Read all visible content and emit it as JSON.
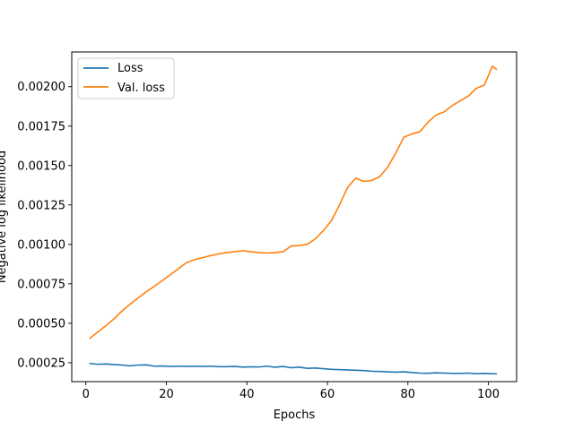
{
  "chart_data": {
    "type": "line",
    "title": "",
    "xlabel": "Epochs",
    "ylabel": "Negative log likelihood",
    "xlim": [
      -3.5,
      107.0
    ],
    "ylim": [
      0.00013,
      0.00222
    ],
    "xticks": [
      0,
      20,
      40,
      60,
      80,
      100
    ],
    "xtick_labels": [
      "0",
      "20",
      "40",
      "60",
      "80",
      "100"
    ],
    "yticks": [
      0.00025,
      0.0005,
      0.00075,
      0.001,
      0.00125,
      0.0015,
      0.00175,
      0.002
    ],
    "ytick_labels": [
      "0.00025",
      "0.00050",
      "0.00075",
      "0.00100",
      "0.00125",
      "0.00150",
      "0.00175",
      "0.00200"
    ],
    "grid": false,
    "legend_position": "top-left",
    "series": [
      {
        "name": "Loss",
        "color": "#1f77b4",
        "x": [
          1,
          3,
          5,
          7,
          9,
          11,
          13,
          15,
          17,
          19,
          21,
          23,
          25,
          27,
          29,
          31,
          33,
          35,
          37,
          39,
          41,
          43,
          45,
          47,
          49,
          51,
          53,
          55,
          57,
          59,
          61,
          63,
          65,
          67,
          69,
          71,
          73,
          75,
          77,
          79,
          81,
          83,
          85,
          87,
          89,
          91,
          93,
          95,
          97,
          99,
          101,
          102
        ],
        "y": [
          0.000245,
          0.00024,
          0.000242,
          0.000238,
          0.000235,
          0.00023,
          0.000235,
          0.000236,
          0.000228,
          0.000229,
          0.000226,
          0.000228,
          0.000227,
          0.000228,
          0.000226,
          0.000228,
          0.000225,
          0.000225,
          0.000226,
          0.000222,
          0.000224,
          0.000223,
          0.000228,
          0.000221,
          0.000226,
          0.000218,
          0.000222,
          0.000214,
          0.000216,
          0.000212,
          0.000208,
          0.000206,
          0.000204,
          0.000202,
          0.0002,
          0.000196,
          0.000194,
          0.000192,
          0.00019,
          0.000192,
          0.000188,
          0.000184,
          0.000183,
          0.000186,
          0.000184,
          0.000182,
          0.000182,
          0.000184,
          0.00018,
          0.000182,
          0.00018,
          0.000179
        ]
      },
      {
        "name": "Val. loss",
        "color": "#ff7f0e",
        "x": [
          1,
          3,
          5,
          7,
          9,
          11,
          13,
          15,
          17,
          19,
          21,
          23,
          25,
          27,
          29,
          31,
          33,
          35,
          37,
          39,
          41,
          43,
          45,
          47,
          49,
          51,
          53,
          55,
          57,
          59,
          61,
          63,
          65,
          67,
          69,
          71,
          73,
          75,
          77,
          79,
          81,
          83,
          85,
          87,
          89,
          91,
          93,
          95,
          97,
          99,
          101,
          102
        ],
        "y": [
          0.000405,
          0.000445,
          0.000485,
          0.000528,
          0.000578,
          0.000621,
          0.000661,
          0.000699,
          0.000734,
          0.000771,
          0.000808,
          0.000846,
          0.000884,
          0.000903,
          0.000916,
          0.000929,
          0.00094,
          0.000948,
          0.000954,
          0.00096,
          0.000953,
          0.000948,
          0.000945,
          0.000948,
          0.000953,
          0.00099,
          0.000993,
          0.001,
          0.001035,
          0.001087,
          0.00115,
          0.00125,
          0.00136,
          0.00142,
          0.0014,
          0.001405,
          0.00143,
          0.00149,
          0.00158,
          0.00168,
          0.0017,
          0.001715,
          0.001775,
          0.00182,
          0.00184,
          0.00188,
          0.00191,
          0.00194,
          0.00199,
          0.00201,
          0.00213,
          0.00211
        ]
      }
    ]
  }
}
